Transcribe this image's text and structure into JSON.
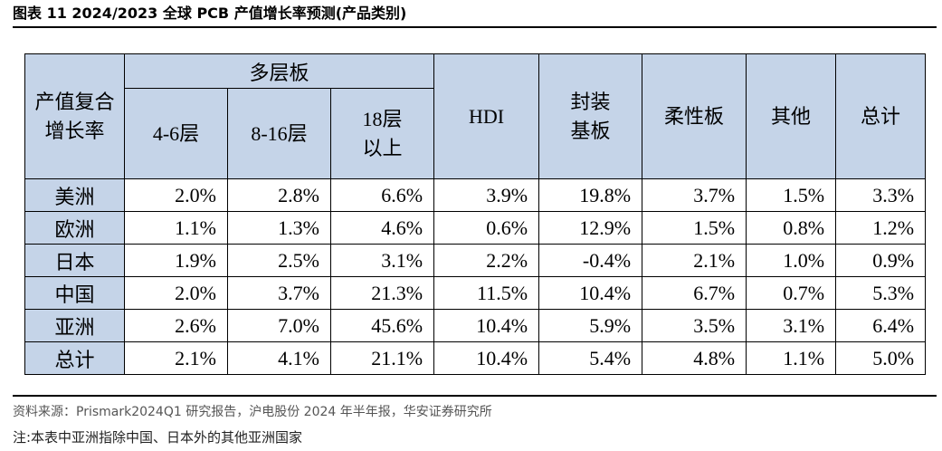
{
  "title": "图表 11 2024/2023 全球 PCB 产值增长率预测(产品类别)",
  "table": {
    "corner_label": "产值复合\n增长率",
    "group_label": "多层板",
    "sub_headers": [
      "4-6层",
      "8-16层",
      "18层\n以上"
    ],
    "headers": [
      "HDI",
      "封装\n基板",
      "柔性板",
      "其他",
      "总计"
    ],
    "rows": [
      {
        "region": "美洲",
        "values": [
          "2.0%",
          "2.8%",
          "6.6%",
          "3.9%",
          "19.8%",
          "3.7%",
          "1.5%",
          "3.3%"
        ]
      },
      {
        "region": "欧洲",
        "values": [
          "1.1%",
          "1.3%",
          "4.6%",
          "0.6%",
          "12.9%",
          "1.5%",
          "0.8%",
          "1.2%"
        ]
      },
      {
        "region": "日本",
        "values": [
          "1.9%",
          "2.5%",
          "3.1%",
          "2.2%",
          "-0.4%",
          "2.1%",
          "1.0%",
          "0.9%"
        ]
      },
      {
        "region": "中国",
        "values": [
          "2.0%",
          "3.7%",
          "21.3%",
          "11.5%",
          "10.4%",
          "6.7%",
          "0.7%",
          "5.3%"
        ]
      },
      {
        "region": "亚洲",
        "values": [
          "2.6%",
          "7.0%",
          "45.6%",
          "10.4%",
          "5.9%",
          "3.5%",
          "3.1%",
          "6.4%"
        ]
      },
      {
        "region": "总计",
        "values": [
          "2.1%",
          "4.1%",
          "21.1%",
          "10.4%",
          "5.4%",
          "4.8%",
          "1.1%",
          "5.0%"
        ]
      }
    ]
  },
  "source": "资料来源：Prismark2024Q1 研究报告，沪电股份 2024 年半年报，华安证券研究所",
  "note": "注:本表中亚洲指除中国、日本外的其他亚洲国家",
  "colors": {
    "header_fill": "#c5d4e8",
    "border": "#000000"
  }
}
